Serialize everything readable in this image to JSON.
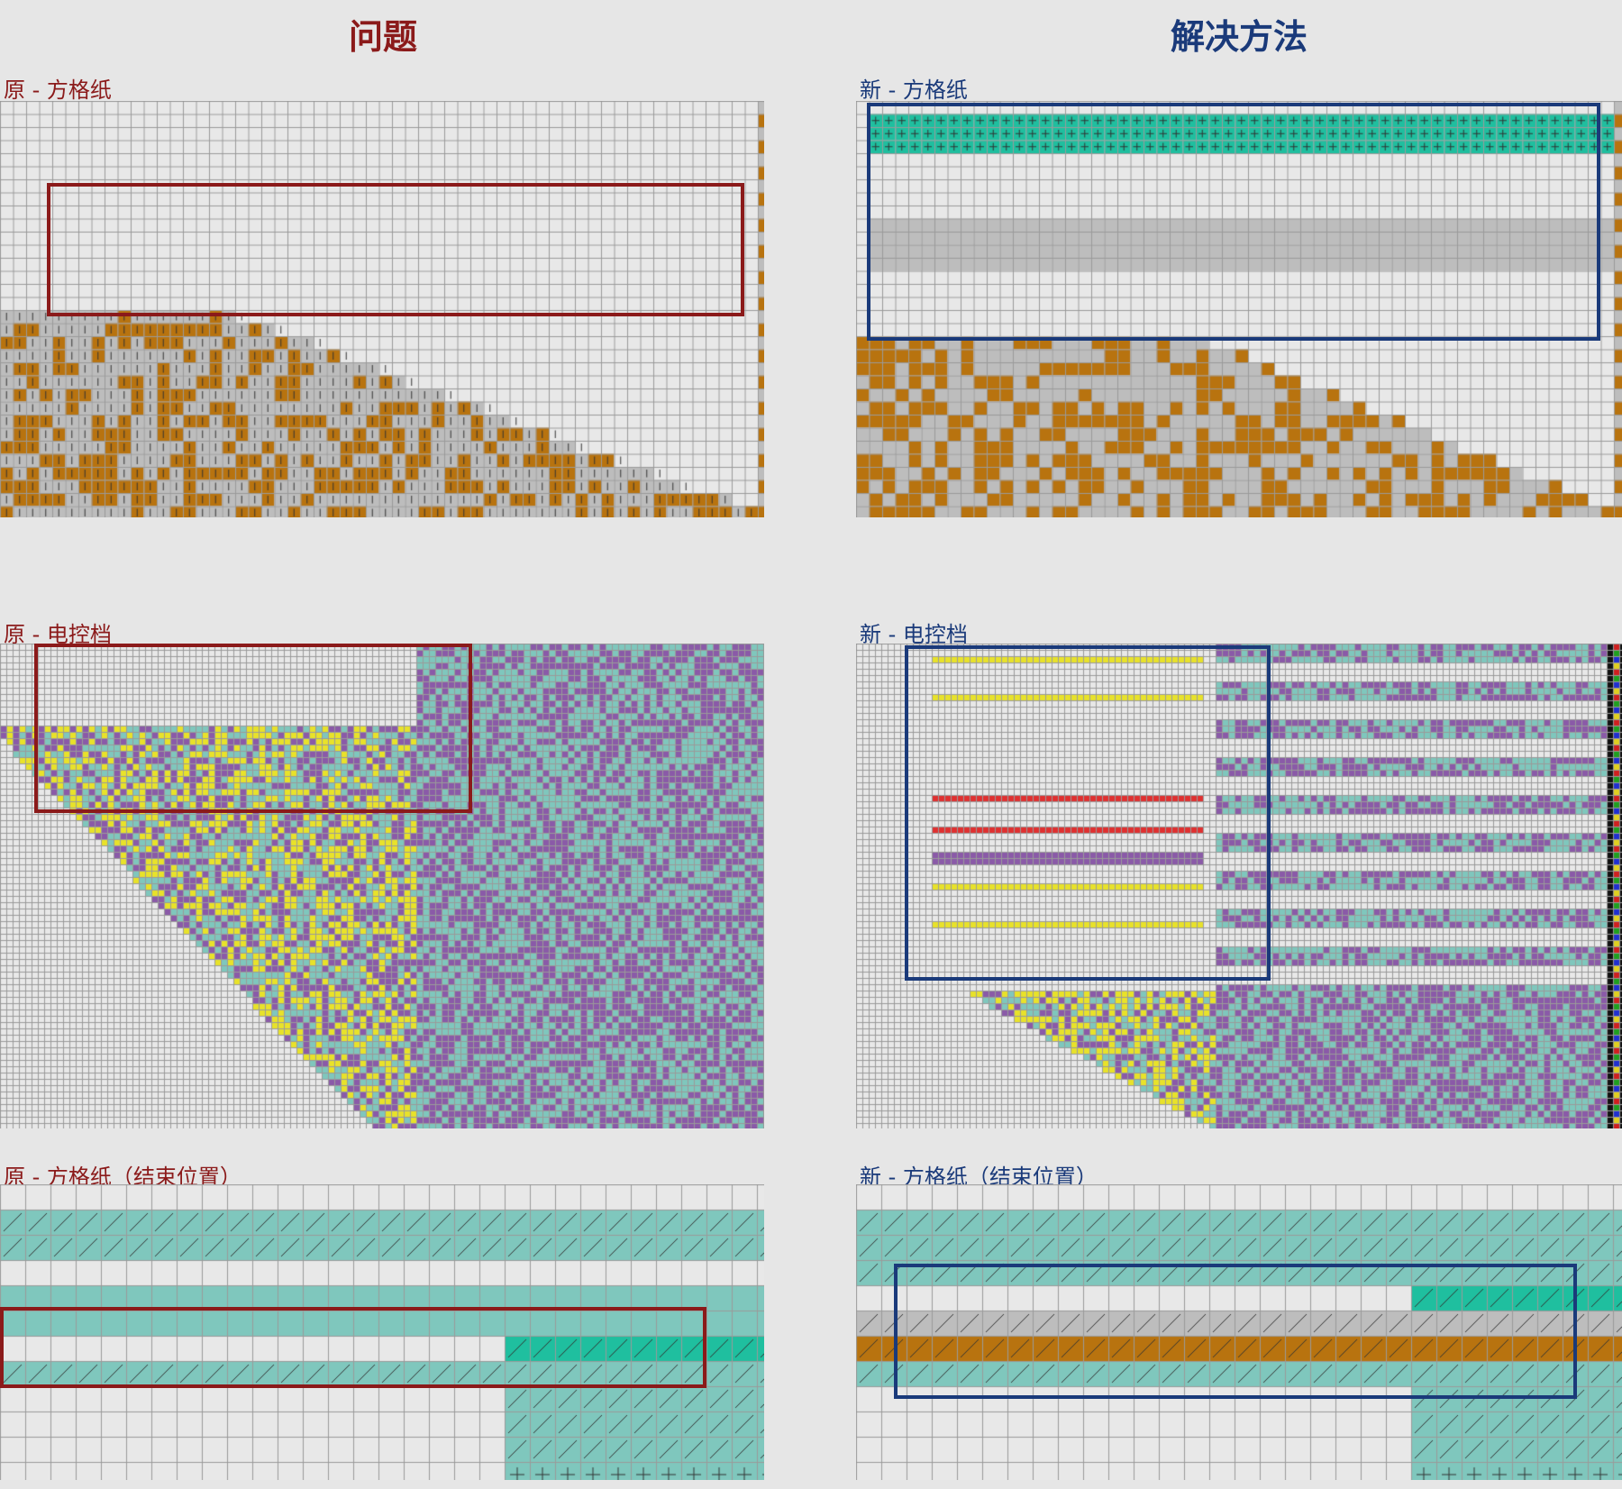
{
  "headers": {
    "problem": "问题",
    "solution": "解决方法"
  },
  "captions": {
    "orig_chart": "原 - 方格纸",
    "new_chart": "新 - 方格纸",
    "orig_ctrl": "原 - 电控档",
    "new_ctrl": "新 - 电控档",
    "orig_end": "原 -  方格纸（结束位置）",
    "new_end": "新 - 方格纸（结束位置）"
  },
  "colors": {
    "background": "#e6e6e6",
    "grid_line": "#9a9a9a",
    "cell_empty": "#e8e8e8",
    "cell_gray": "#bdbdbd",
    "cell_orange": "#b8730f",
    "cell_teal": "#7fc7bd",
    "cell_bright_teal": "#1fbf9f",
    "cell_purple": "#8a5aa8",
    "cell_yellow": "#e8e22a",
    "cell_blue": "#1a2fe0",
    "cell_red": "#e03030",
    "frame_problem": "#8b1a1a",
    "frame_solution": "#1a3a7a"
  }
}
